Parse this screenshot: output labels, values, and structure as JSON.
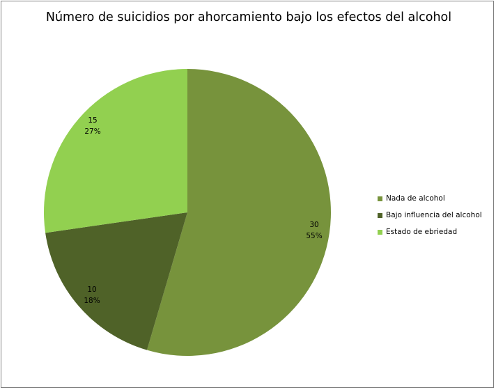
{
  "chart_data": {
    "type": "pie",
    "title": "Número de suicidios por ahorcamiento bajo los efectos del alcohol",
    "categories": [
      "Nada de alcohol",
      "Bajo influencia del alcohol",
      "Estado de ebriedad"
    ],
    "values": [
      30,
      10,
      15
    ],
    "percent_labels": [
      "55%",
      "18%",
      "27%"
    ],
    "colors": [
      "#77933c",
      "#4f6228",
      "#92d050"
    ],
    "legend_position": "right",
    "start_angle_deg": 0,
    "direction": "clockwise"
  }
}
